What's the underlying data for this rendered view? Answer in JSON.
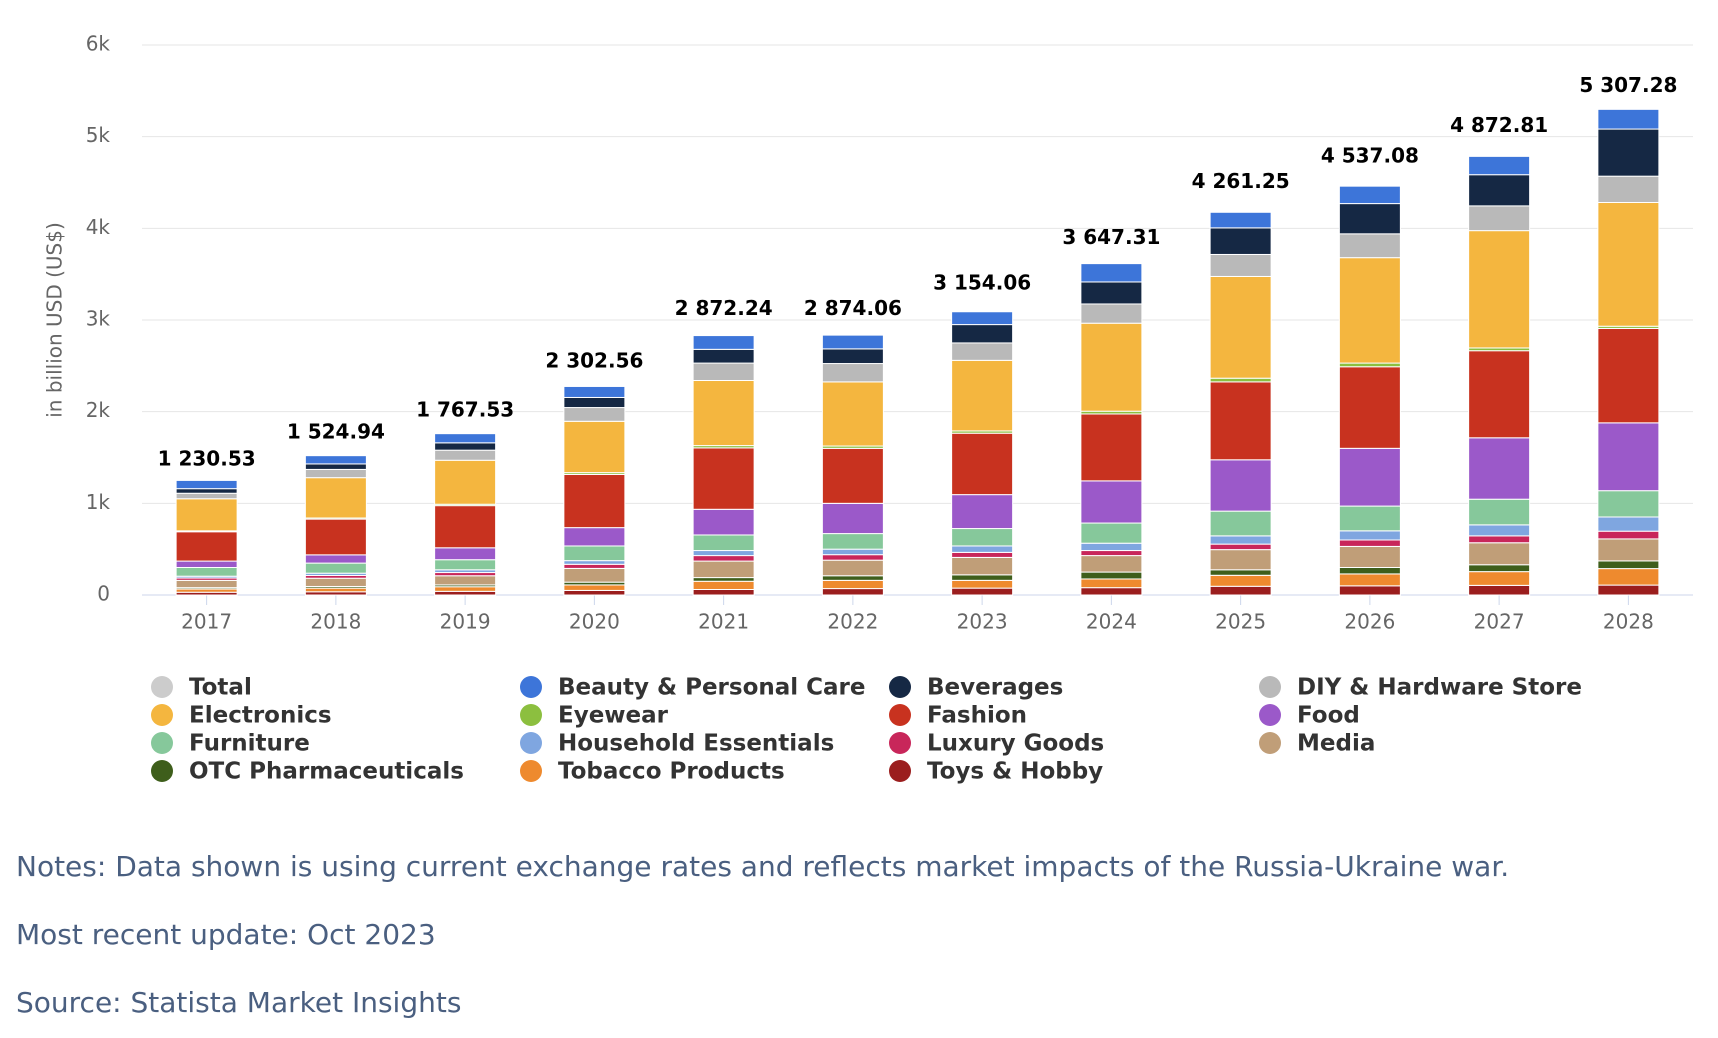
{
  "chart_data": {
    "type": "stacked_bar",
    "y_axis_title": "in billion USD (US$)",
    "categories": [
      "2017",
      "2018",
      "2019",
      "2020",
      "2021",
      "2022",
      "2023",
      "2024",
      "2025",
      "2026",
      "2027",
      "2028"
    ],
    "ylim": [
      0,
      6000
    ],
    "yticks": [
      0,
      {
        "value": 1000,
        "label": "1k"
      },
      {
        "value": 2000,
        "label": "2k"
      },
      {
        "value": 3000,
        "label": "3k"
      },
      {
        "value": 4000,
        "label": "4k"
      },
      {
        "value": 5000,
        "label": "5k"
      },
      {
        "value": 6000,
        "label": "6k"
      }
    ],
    "grid": true,
    "series": [
      {
        "name": "Total",
        "color": "#cccccc",
        "visible": false,
        "values": [
          1230.53,
          1524.94,
          1767.53,
          2302.56,
          2872.24,
          2874.06,
          3154.06,
          3647.31,
          4261.25,
          4537.08,
          4872.81,
          5307.28
        ],
        "value_labels": [
          "1 230.53",
          "1 524.94",
          "1 767.53",
          "2 302.56",
          "2 872.24",
          "2 874.06",
          "3 154.06",
          "3 647.31",
          "4 261.25",
          "4 537.08",
          "4 872.81",
          "5 307.28"
        ]
      },
      {
        "name": "Beauty & Personal Care",
        "color": "#3d75d9",
        "values": [
          90,
          90,
          100,
          120,
          150,
          150,
          140,
          200,
          170,
          190,
          200,
          215
        ]
      },
      {
        "name": "Beverages",
        "color": "#152844",
        "values": [
          50,
          60,
          80,
          110,
          150,
          160,
          200,
          240,
          290,
          330,
          340,
          514
        ]
      },
      {
        "name": "DIY & Hardware Store",
        "color": "#b9b9b9",
        "values": [
          60,
          90,
          110,
          150,
          190,
          200,
          190,
          210,
          240,
          260,
          270,
          287
        ]
      },
      {
        "name": "Electronics",
        "color": "#f4b63f",
        "values": [
          350,
          440,
          480,
          560,
          710,
          700,
          770,
          960,
          1110,
          1150,
          1280,
          1350
        ]
      },
      {
        "name": "Eyewear",
        "color": "#8cbf3f",
        "values": [
          10,
          12,
          15,
          20,
          25,
          25,
          25,
          30,
          40,
          40,
          30,
          24
        ]
      },
      {
        "name": "Fashion",
        "color": "#c8321f",
        "values": [
          320,
          390,
          460,
          580,
          670,
          600,
          670,
          730,
          850,
          890,
          950,
          1030
        ]
      },
      {
        "name": "Food",
        "color": "#9b59c9",
        "values": [
          70,
          90,
          130,
          200,
          280,
          330,
          370,
          460,
          560,
          630,
          670,
          740
        ]
      },
      {
        "name": "Furniture",
        "color": "#86c89b",
        "values": [
          95,
          110,
          110,
          160,
          170,
          170,
          190,
          220,
          270,
          270,
          280,
          287
        ]
      },
      {
        "name": "Household Essentials",
        "color": "#7fa6e0",
        "values": [
          20,
          25,
          30,
          40,
          55,
          60,
          70,
          80,
          90,
          100,
          120,
          155
        ]
      },
      {
        "name": "Luxury Goods",
        "color": "#c8265a",
        "values": [
          25,
          30,
          35,
          45,
          60,
          60,
          55,
          55,
          60,
          70,
          75,
          84
        ]
      },
      {
        "name": "Media",
        "color": "#c09e78",
        "values": [
          80,
          90,
          100,
          150,
          180,
          170,
          190,
          180,
          220,
          230,
          240,
          240
        ]
      },
      {
        "name": "OTC Pharmaceuticals",
        "color": "#3e5e1b",
        "values": [
          15,
          18,
          20,
          30,
          40,
          50,
          60,
          75,
          60,
          70,
          75,
          84
        ]
      },
      {
        "name": "Tobacco Products",
        "color": "#ee8a2e",
        "values": [
          35,
          40,
          50,
          60,
          90,
          90,
          85,
          95,
          120,
          130,
          150,
          180
        ]
      },
      {
        "name": "Toys & Hobby",
        "color": "#9b1e1e",
        "values": [
          30,
          35,
          40,
          50,
          60,
          70,
          75,
          80,
          95,
          100,
          105,
          108
        ]
      }
    ]
  },
  "notes": [
    "Notes: Data shown is using current exchange rates and reflects market impacts of the Russia-Ukraine war.",
    "Most recent update: Oct 2023",
    "Source: Statista Market Insights"
  ]
}
